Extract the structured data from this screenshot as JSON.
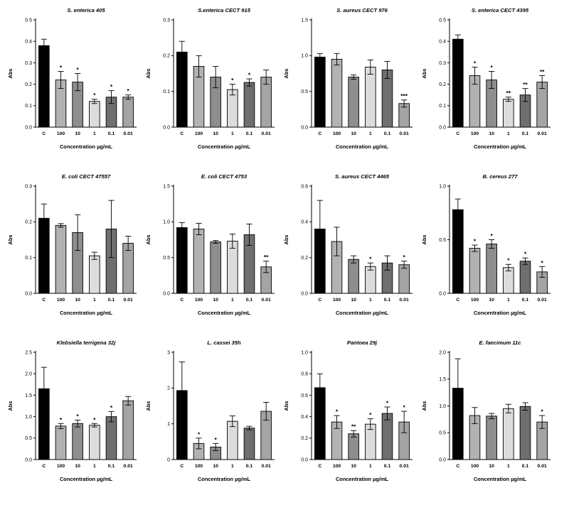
{
  "figure": {
    "background": "#ffffff",
    "grid": {
      "rows": 3,
      "cols": 4
    }
  },
  "style": {
    "bar_colors": [
      "#000000",
      "#b2b2b2",
      "#8e8e8e",
      "#dcdcdc",
      "#6f6f6f",
      "#a4a4a4"
    ],
    "bar_outline": "#000000",
    "text_color": "#000000"
  },
  "chart_data": [
    {
      "type": "bar",
      "title": "S. enterica 405",
      "xlabel": "Concentration µg/mL",
      "ylabel": "Abs",
      "categories": [
        "C",
        "100",
        "10",
        "1",
        "0.1",
        "0.01"
      ],
      "values": [
        0.38,
        0.22,
        0.21,
        0.12,
        0.14,
        0.14
      ],
      "errors": [
        0.03,
        0.04,
        0.04,
        0.01,
        0.03,
        0.01
      ],
      "significance": [
        "",
        "*",
        "*",
        "*",
        "*",
        "*"
      ],
      "ylim": [
        0,
        0.5
      ],
      "ytick_step": 0.1,
      "ytick_decimals": 1
    },
    {
      "type": "bar",
      "title": "S.enterica CECT 915",
      "xlabel": "Concentration µg/mL",
      "ylabel": "Abs",
      "categories": [
        "C",
        "100",
        "10",
        "1",
        "0.1",
        "0.01"
      ],
      "values": [
        0.21,
        0.17,
        0.14,
        0.105,
        0.125,
        0.14
      ],
      "errors": [
        0.03,
        0.03,
        0.03,
        0.015,
        0.01,
        0.02
      ],
      "significance": [
        "",
        "",
        "",
        "*",
        "*",
        ""
      ],
      "ylim": [
        0,
        0.3
      ],
      "ytick_step": 0.1,
      "ytick_decimals": 1
    },
    {
      "type": "bar",
      "title": "S. aureus CECT 976",
      "xlabel": "Concentration µg/mL",
      "ylabel": "Abs",
      "categories": [
        "C",
        "100",
        "10",
        "1",
        "0.1",
        "0.01"
      ],
      "values": [
        0.98,
        0.95,
        0.7,
        0.84,
        0.8,
        0.33
      ],
      "errors": [
        0.05,
        0.08,
        0.03,
        0.1,
        0.12,
        0.05
      ],
      "significance": [
        "",
        "",
        "",
        "",
        "",
        "***"
      ],
      "ylim": [
        0,
        1.5
      ],
      "ytick_step": 0.5,
      "ytick_decimals": 1
    },
    {
      "type": "bar",
      "title": "S. enterica CECT 4395",
      "xlabel": "Concentration µg/mL",
      "ylabel": "Abs",
      "categories": [
        "C",
        "100",
        "10",
        "1",
        "0.1",
        "0.01"
      ],
      "values": [
        0.41,
        0.24,
        0.22,
        0.13,
        0.15,
        0.21
      ],
      "errors": [
        0.02,
        0.04,
        0.04,
        0.01,
        0.03,
        0.03
      ],
      "significance": [
        "",
        "*",
        "*",
        "**",
        "**",
        "**"
      ],
      "ylim": [
        0,
        0.5
      ],
      "ytick_step": 0.1,
      "ytick_decimals": 1
    },
    {
      "type": "bar",
      "title": "E. coli CECT 47557",
      "xlabel": "Concentration µg/mL",
      "ylabel": "Abs",
      "categories": [
        "C",
        "100",
        "10",
        "1",
        "0.1",
        "0.01"
      ],
      "values": [
        0.21,
        0.19,
        0.17,
        0.105,
        0.18,
        0.14
      ],
      "errors": [
        0.04,
        0.005,
        0.05,
        0.01,
        0.08,
        0.02
      ],
      "significance": [
        "",
        "",
        "",
        "",
        "",
        ""
      ],
      "ylim": [
        0,
        0.3
      ],
      "ytick_step": 0.1,
      "ytick_decimals": 1
    },
    {
      "type": "bar",
      "title": "E. coli CECT 4753",
      "xlabel": "Concentration µg/mL",
      "ylabel": "Abs",
      "categories": [
        "C",
        "100",
        "10",
        "1",
        "0.1",
        "0.01"
      ],
      "values": [
        0.92,
        0.9,
        0.72,
        0.73,
        0.82,
        0.37
      ],
      "errors": [
        0.07,
        0.08,
        0.02,
        0.1,
        0.15,
        0.08
      ],
      "significance": [
        "",
        "",
        "",
        "",
        "",
        "**"
      ],
      "ylim": [
        0,
        1.5
      ],
      "ytick_step": 0.5,
      "ytick_decimals": 1
    },
    {
      "type": "bar",
      "title": "S. aureus CECT 4465",
      "xlabel": "Concentration µg/mL",
      "ylabel": "Abs",
      "categories": [
        "C",
        "100",
        "10",
        "1",
        "0.1",
        "0.01"
      ],
      "values": [
        0.36,
        0.29,
        0.19,
        0.15,
        0.17,
        0.16
      ],
      "errors": [
        0.16,
        0.08,
        0.02,
        0.02,
        0.04,
        0.02
      ],
      "significance": [
        "",
        "",
        "",
        "*",
        "",
        "*"
      ],
      "ylim": [
        0,
        0.6
      ],
      "ytick_step": 0.2,
      "ytick_decimals": 1
    },
    {
      "type": "bar",
      "title": "B. cereus 277",
      "xlabel": "Concentration µg/mL",
      "ylabel": "Abs",
      "categories": [
        "C",
        "100",
        "10",
        "1",
        "0.1",
        "0.01"
      ],
      "values": [
        0.78,
        0.42,
        0.46,
        0.24,
        0.3,
        0.2
      ],
      "errors": [
        0.1,
        0.03,
        0.04,
        0.03,
        0.03,
        0.05
      ],
      "significance": [
        "",
        "*",
        "*",
        "*",
        "*",
        "*"
      ],
      "ylim": [
        0,
        1.0
      ],
      "ytick_step": 0.5,
      "ytick_decimals": 1
    },
    {
      "type": "bar",
      "title": "Klebsiella terrigena 32j",
      "xlabel": "Concentration µg/mL",
      "ylabel": "Abs",
      "categories": [
        "C",
        "100",
        "10",
        "1",
        "0.1",
        "0.01"
      ],
      "values": [
        1.65,
        0.78,
        0.84,
        0.8,
        1.0,
        1.37
      ],
      "errors": [
        0.5,
        0.06,
        0.08,
        0.04,
        0.12,
        0.1
      ],
      "significance": [
        "",
        "*",
        "*",
        "*",
        "*",
        ""
      ],
      "ylim": [
        0,
        2.5
      ],
      "ytick_step": 0.5,
      "ytick_decimals": 1
    },
    {
      "type": "bar",
      "title": "L. cassei 35h",
      "xlabel": "Concentration µg/mL",
      "ylabel": "Abs",
      "categories": [
        "C",
        "100",
        "10",
        "1",
        "0.1",
        "0.01"
      ],
      "values": [
        1.93,
        0.45,
        0.35,
        1.07,
        0.88,
        1.35
      ],
      "errors": [
        0.8,
        0.15,
        0.1,
        0.15,
        0.05,
        0.25
      ],
      "significance": [
        "",
        "*",
        "*",
        "",
        "",
        ""
      ],
      "ylim": [
        0,
        3
      ],
      "ytick_step": 1,
      "ytick_decimals": 0
    },
    {
      "type": "bar",
      "title": "Pantoea 29j",
      "xlabel": "Concentration µg/mL",
      "ylabel": "Abs",
      "categories": [
        "C",
        "100",
        "10",
        "1",
        "0.1",
        "0.01"
      ],
      "values": [
        0.67,
        0.35,
        0.24,
        0.33,
        0.43,
        0.35
      ],
      "errors": [
        0.13,
        0.06,
        0.03,
        0.05,
        0.06,
        0.1
      ],
      "significance": [
        "",
        "*",
        "**",
        "*",
        "*",
        "*"
      ],
      "ylim": [
        0,
        1.0
      ],
      "ytick_step": 0.2,
      "ytick_decimals": 1
    },
    {
      "type": "bar",
      "title": "E. faecimum 11c",
      "xlabel": "Concentration µg/mL",
      "ylabel": "Abs",
      "categories": [
        "C",
        "100",
        "10",
        "1",
        "0.1",
        "0.01"
      ],
      "values": [
        1.33,
        0.82,
        0.81,
        0.95,
        0.99,
        0.7
      ],
      "errors": [
        0.55,
        0.15,
        0.05,
        0.08,
        0.07,
        0.12
      ],
      "significance": [
        "",
        "",
        "",
        "",
        "",
        "*"
      ],
      "ylim": [
        0,
        2.0
      ],
      "ytick_step": 0.5,
      "ytick_decimals": 1
    }
  ]
}
